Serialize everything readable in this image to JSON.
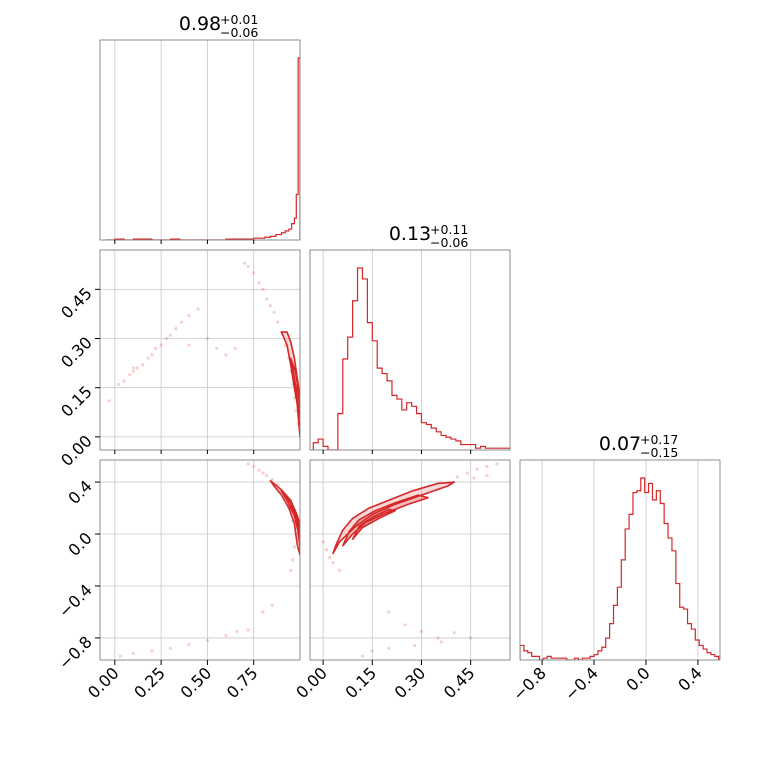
{
  "colors": {
    "accent": "#d62728",
    "grid": "#c8c8c8",
    "frame": "#808080"
  },
  "chart_data": [
    {
      "type": "histogram",
      "panel": "diag-0",
      "title": {
        "value": "0.98",
        "plus": "+0.01",
        "minus": "−0.06"
      },
      "xlim": [
        -0.08,
        1.0
      ],
      "grid": true,
      "edges": [
        -0.05,
        0.0,
        0.05,
        0.1,
        0.15,
        0.2,
        0.25,
        0.3,
        0.35,
        0.4,
        0.45,
        0.5,
        0.55,
        0.6,
        0.65,
        0.7,
        0.75,
        0.78,
        0.81,
        0.84,
        0.87,
        0.9,
        0.92,
        0.94,
        0.955,
        0.97,
        0.98,
        0.99,
        1.0
      ],
      "counts": [
        0,
        0.005,
        0,
        0.005,
        0.005,
        0,
        0,
        0.005,
        0,
        0,
        0,
        0,
        0,
        0.005,
        0.005,
        0.005,
        0.01,
        0.01,
        0.015,
        0.02,
        0.03,
        0.04,
        0.05,
        0.06,
        0.09,
        0.12,
        0.25,
        1.0
      ]
    },
    {
      "type": "scatter",
      "panel": "r1c0",
      "ylim": [
        -0.03,
        0.57
      ],
      "yticks": [
        "0.00",
        "0.15",
        "0.30",
        "0.45"
      ],
      "grid": true,
      "points": [
        [
          0.02,
          0.16
        ],
        [
          0.05,
          0.17
        ],
        [
          0.08,
          0.19
        ],
        [
          0.1,
          0.2
        ],
        [
          0.12,
          0.21
        ],
        [
          0.15,
          0.22
        ],
        [
          0.18,
          0.24
        ],
        [
          0.2,
          0.25
        ],
        [
          0.22,
          0.27
        ],
        [
          0.25,
          0.28
        ],
        [
          0.28,
          0.3
        ],
        [
          0.3,
          0.31
        ],
        [
          0.33,
          0.33
        ],
        [
          0.36,
          0.35
        ],
        [
          0.4,
          0.37
        ],
        [
          0.45,
          0.39
        ],
        [
          0.5,
          0.3
        ],
        [
          0.55,
          0.27
        ],
        [
          0.6,
          0.25
        ],
        [
          0.65,
          0.27
        ],
        [
          0.7,
          0.53
        ],
        [
          0.72,
          0.52
        ],
        [
          0.75,
          0.5
        ],
        [
          0.78,
          0.47
        ],
        [
          0.8,
          0.45
        ],
        [
          0.82,
          0.42
        ],
        [
          0.84,
          0.4
        ],
        [
          0.86,
          0.38
        ],
        [
          0.88,
          0.35
        ],
        [
          0.9,
          0.32
        ],
        [
          0.92,
          0.28
        ],
        [
          0.94,
          0.24
        ],
        [
          0.95,
          0.2
        ],
        [
          0.96,
          0.16
        ],
        [
          0.97,
          0.12
        ],
        [
          0.98,
          0.08
        ],
        [
          0.99,
          0.04
        ],
        [
          -0.03,
          0.11
        ],
        [
          0.1,
          0.21
        ],
        [
          0.4,
          0.28
        ]
      ],
      "contours": [
        [
          [
            0.9,
            0.32
          ],
          [
            0.93,
            0.28
          ],
          [
            0.95,
            0.22
          ],
          [
            0.97,
            0.15
          ],
          [
            0.985,
            0.1
          ],
          [
            0.995,
            0.03
          ],
          [
            1.0,
            0.0
          ],
          [
            1.0,
            0.12
          ],
          [
            0.985,
            0.18
          ],
          [
            0.97,
            0.24
          ],
          [
            0.95,
            0.29
          ],
          [
            0.93,
            0.32
          ]
        ],
        [
          [
            0.95,
            0.24
          ],
          [
            0.97,
            0.18
          ],
          [
            0.985,
            0.12
          ],
          [
            0.995,
            0.05
          ],
          [
            1.0,
            0.02
          ],
          [
            1.0,
            0.1
          ],
          [
            0.99,
            0.15
          ],
          [
            0.975,
            0.2
          ]
        ],
        [
          [
            0.975,
            0.16
          ],
          [
            0.99,
            0.1
          ],
          [
            1.0,
            0.05
          ],
          [
            1.0,
            0.12
          ],
          [
            0.99,
            0.14
          ]
        ]
      ]
    },
    {
      "type": "histogram",
      "panel": "diag-1",
      "title": {
        "value": "0.13",
        "plus": "+0.11",
        "minus": "−0.06"
      },
      "xlim": [
        -0.04,
        0.57
      ],
      "grid": true,
      "edges": [
        -0.03,
        -0.015,
        0.0,
        0.015,
        0.03,
        0.045,
        0.06,
        0.075,
        0.09,
        0.105,
        0.12,
        0.135,
        0.15,
        0.165,
        0.18,
        0.195,
        0.21,
        0.225,
        0.24,
        0.255,
        0.27,
        0.285,
        0.3,
        0.315,
        0.33,
        0.345,
        0.36,
        0.375,
        0.39,
        0.405,
        0.42,
        0.435,
        0.45,
        0.465,
        0.48,
        0.495,
        0.51,
        0.525,
        0.54,
        0.555,
        0.57
      ],
      "counts": [
        0.04,
        0.06,
        0.02,
        0.0,
        0.0,
        0.2,
        0.5,
        0.62,
        0.82,
        1.0,
        0.94,
        0.7,
        0.6,
        0.45,
        0.42,
        0.38,
        0.3,
        0.28,
        0.22,
        0.26,
        0.24,
        0.2,
        0.15,
        0.14,
        0.12,
        0.1,
        0.08,
        0.07,
        0.06,
        0.05,
        0.03,
        0.03,
        0.03,
        0.01,
        0.02,
        0.01,
        0.01,
        0.01,
        0.01,
        0.01
      ]
    },
    {
      "type": "scatter",
      "panel": "r2c0",
      "ylim": [
        -0.97,
        0.57
      ],
      "yticks": [
        "−0.8",
        "−0.4",
        "0.0",
        "0.4"
      ],
      "grid": true,
      "points": [
        [
          0.72,
          0.54
        ],
        [
          0.75,
          0.52
        ],
        [
          0.78,
          0.49
        ],
        [
          0.8,
          0.47
        ],
        [
          0.82,
          0.45
        ],
        [
          0.85,
          0.42
        ],
        [
          0.88,
          0.38
        ],
        [
          0.9,
          0.33
        ],
        [
          0.92,
          0.28
        ],
        [
          0.94,
          0.2
        ],
        [
          0.96,
          0.1
        ],
        [
          0.98,
          0.0
        ],
        [
          0.97,
          -0.1
        ],
        [
          0.96,
          -0.2
        ],
        [
          0.95,
          -0.28
        ],
        [
          0.85,
          -0.55
        ],
        [
          0.8,
          -0.6
        ],
        [
          0.72,
          -0.74
        ],
        [
          0.6,
          -0.78
        ],
        [
          0.5,
          -0.82
        ],
        [
          0.4,
          -0.85
        ],
        [
          0.3,
          -0.88
        ],
        [
          0.2,
          -0.9
        ],
        [
          0.1,
          -0.92
        ],
        [
          0.03,
          -0.94
        ],
        [
          0.66,
          -0.75
        ]
      ],
      "contours": [
        [
          [
            0.84,
            0.41
          ],
          [
            0.9,
            0.34
          ],
          [
            0.95,
            0.26
          ],
          [
            0.98,
            0.16
          ],
          [
            1.0,
            0.08
          ],
          [
            1.0,
            -0.16
          ],
          [
            0.985,
            -0.08
          ],
          [
            0.97,
            0.08
          ],
          [
            0.94,
            0.2
          ],
          [
            0.9,
            0.3
          ],
          [
            0.86,
            0.37
          ]
        ],
        [
          [
            0.9,
            0.33
          ],
          [
            0.95,
            0.24
          ],
          [
            0.98,
            0.14
          ],
          [
            1.0,
            0.05
          ],
          [
            1.0,
            -0.1
          ],
          [
            0.99,
            0.02
          ],
          [
            0.97,
            0.14
          ],
          [
            0.93,
            0.26
          ]
        ],
        [
          [
            0.95,
            0.22
          ],
          [
            0.98,
            0.12
          ],
          [
            1.0,
            0.04
          ],
          [
            1.0,
            -0.05
          ],
          [
            0.99,
            0.06
          ],
          [
            0.97,
            0.16
          ]
        ]
      ]
    },
    {
      "type": "scatter",
      "panel": "r2c1",
      "xlim": [
        -0.04,
        0.57
      ],
      "ylim": [
        -0.97,
        0.57
      ],
      "xticks": [
        "0.00",
        "0.15",
        "0.30",
        "0.45"
      ],
      "grid": true,
      "points": [
        [
          0.0,
          -0.06
        ],
        [
          0.01,
          -0.12
        ],
        [
          0.02,
          -0.18
        ],
        [
          0.03,
          -0.22
        ],
        [
          0.05,
          -0.28
        ],
        [
          0.41,
          0.44
        ],
        [
          0.44,
          0.47
        ],
        [
          0.47,
          0.5
        ],
        [
          0.5,
          0.52
        ],
        [
          0.53,
          0.54
        ],
        [
          0.2,
          -0.6
        ],
        [
          0.25,
          -0.7
        ],
        [
          0.3,
          -0.75
        ],
        [
          0.35,
          -0.8
        ],
        [
          0.4,
          -0.76
        ],
        [
          0.15,
          -0.9
        ],
        [
          0.2,
          -0.88
        ],
        [
          0.28,
          -0.86
        ],
        [
          0.36,
          -0.83
        ],
        [
          0.45,
          -0.8
        ],
        [
          0.12,
          -0.94
        ],
        [
          0.5,
          0.45
        ],
        [
          0.46,
          0.43
        ]
      ],
      "contours": [
        [
          [
            0.03,
            -0.15
          ],
          [
            0.05,
            -0.06
          ],
          [
            0.1,
            0.06
          ],
          [
            0.15,
            0.15
          ],
          [
            0.22,
            0.23
          ],
          [
            0.3,
            0.3
          ],
          [
            0.38,
            0.37
          ],
          [
            0.4,
            0.4
          ],
          [
            0.35,
            0.39
          ],
          [
            0.27,
            0.33
          ],
          [
            0.2,
            0.26
          ],
          [
            0.14,
            0.2
          ],
          [
            0.09,
            0.12
          ],
          [
            0.06,
            0.03
          ],
          [
            0.04,
            -0.08
          ]
        ],
        [
          [
            0.06,
            -0.09
          ],
          [
            0.09,
            0.0
          ],
          [
            0.13,
            0.09
          ],
          [
            0.19,
            0.16
          ],
          [
            0.26,
            0.23
          ],
          [
            0.32,
            0.28
          ],
          [
            0.29,
            0.3
          ],
          [
            0.22,
            0.24
          ],
          [
            0.16,
            0.18
          ],
          [
            0.11,
            0.11
          ],
          [
            0.08,
            0.02
          ]
        ],
        [
          [
            0.09,
            -0.04
          ],
          [
            0.12,
            0.05
          ],
          [
            0.17,
            0.12
          ],
          [
            0.22,
            0.18
          ],
          [
            0.2,
            0.19
          ],
          [
            0.15,
            0.13
          ],
          [
            0.11,
            0.06
          ]
        ]
      ]
    },
    {
      "type": "histogram",
      "panel": "diag-2",
      "title": {
        "value": "0.07",
        "plus": "+0.17",
        "minus": "−0.15"
      },
      "xlim": [
        -0.97,
        0.57
      ],
      "xticks": [
        "−0.8",
        "−0.4",
        "0.0",
        "0.4"
      ],
      "grid": true,
      "edges": [
        -0.97,
        -0.94,
        -0.91,
        -0.88,
        -0.85,
        -0.82,
        -0.79,
        -0.76,
        -0.73,
        -0.7,
        -0.67,
        -0.64,
        -0.61,
        -0.58,
        -0.55,
        -0.52,
        -0.49,
        -0.46,
        -0.43,
        -0.4,
        -0.37,
        -0.34,
        -0.31,
        -0.28,
        -0.25,
        -0.22,
        -0.19,
        -0.16,
        -0.13,
        -0.1,
        -0.07,
        -0.04,
        -0.01,
        0.02,
        0.05,
        0.08,
        0.11,
        0.14,
        0.17,
        0.2,
        0.23,
        0.26,
        0.29,
        0.32,
        0.35,
        0.38,
        0.41,
        0.44,
        0.47,
        0.5,
        0.53,
        0.56
      ],
      "counts": [
        0.08,
        0.05,
        0.04,
        0.02,
        0.02,
        0.0,
        0.01,
        0.02,
        0.01,
        0.01,
        0.01,
        0.01,
        0.0,
        0.0,
        0.01,
        0.0,
        0.01,
        0.01,
        0.02,
        0.03,
        0.05,
        0.07,
        0.12,
        0.2,
        0.3,
        0.4,
        0.55,
        0.72,
        0.8,
        0.92,
        0.93,
        1.0,
        0.92,
        0.97,
        0.88,
        0.93,
        0.86,
        0.75,
        0.67,
        0.6,
        0.42,
        0.29,
        0.28,
        0.2,
        0.17,
        0.11,
        0.08,
        0.06,
        0.04,
        0.03,
        0.02
      ]
    }
  ]
}
